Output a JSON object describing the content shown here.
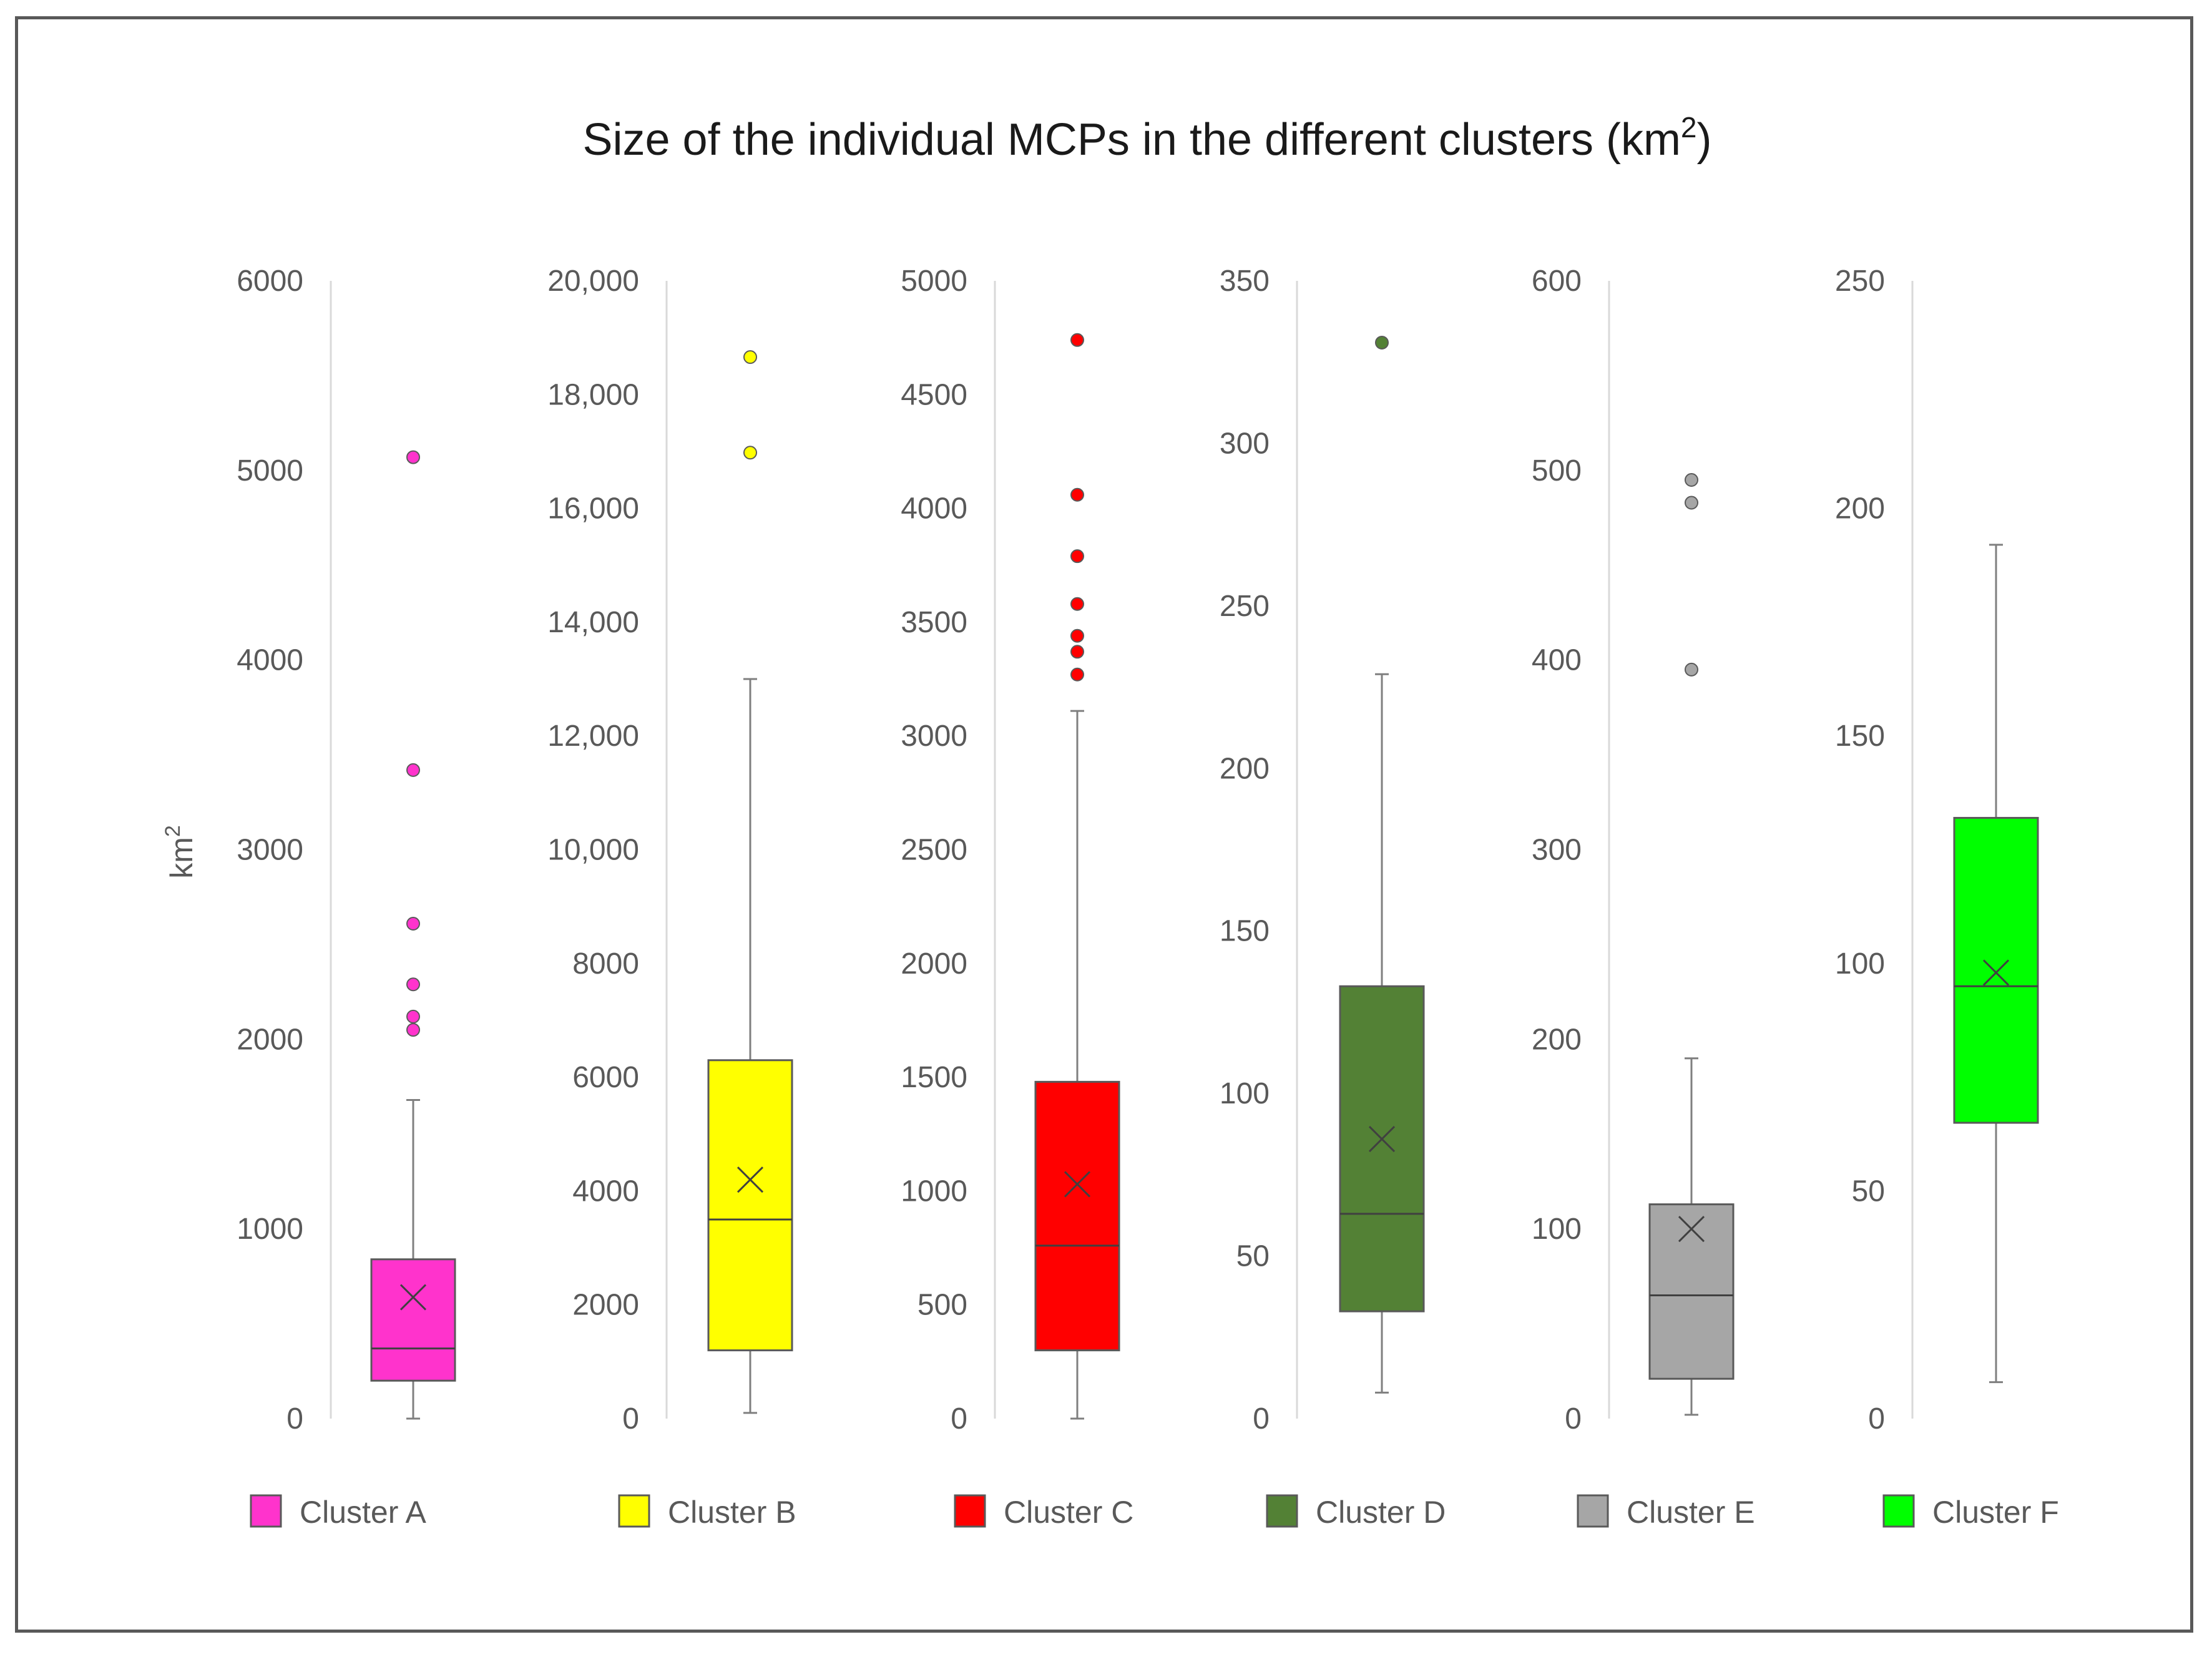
{
  "chart_data": {
    "type": "boxplot",
    "title": "Size of the individual MCPs in the different clusters (km",
    "title_sup": "2",
    "title_end": ")",
    "ylabel": "km",
    "ylabel_sup": "2",
    "panels": [
      {
        "name": "Cluster A",
        "color": "#ff33cc",
        "ylim": [
          0,
          6000
        ],
        "ticks": [
          0,
          1000,
          2000,
          3000,
          4000,
          5000,
          6000
        ],
        "tick_labels": [
          "0",
          "1000",
          "2000",
          "3000",
          "4000",
          "5000",
          "6000"
        ],
        "whisker_low": 0,
        "q1": 200,
        "median": 370,
        "q3": 840,
        "whisker_high": 1680,
        "mean": 640,
        "outliers": [
          2050,
          2120,
          2290,
          2610,
          3420,
          5070
        ]
      },
      {
        "name": "Cluster B",
        "color": "#ffff00",
        "ylim": [
          0,
          20000
        ],
        "ticks": [
          0,
          2000,
          4000,
          6000,
          8000,
          10000,
          12000,
          14000,
          16000,
          18000,
          20000
        ],
        "tick_labels": [
          "0",
          "2000",
          "4000",
          "6000",
          "8000",
          "10,000",
          "12,000",
          "14,000",
          "16,000",
          "18,000",
          "20,000"
        ],
        "whisker_low": 100,
        "q1": 1200,
        "median": 3500,
        "q3": 6300,
        "whisker_high": 13000,
        "mean": 4200,
        "outliers": [
          16980,
          18660
        ]
      },
      {
        "name": "Cluster C",
        "color": "#ff0000",
        "ylim": [
          0,
          5000
        ],
        "ticks": [
          0,
          500,
          1000,
          1500,
          2000,
          2500,
          3000,
          3500,
          4000,
          4500,
          5000
        ],
        "tick_labels": [
          "0",
          "500",
          "1000",
          "1500",
          "2000",
          "2500",
          "3000",
          "3500",
          "4000",
          "4500",
          "5000"
        ],
        "whisker_low": 0,
        "q1": 300,
        "median": 760,
        "q3": 1480,
        "whisker_high": 3110,
        "mean": 1030,
        "outliers": [
          3270,
          3370,
          3440,
          3580,
          3790,
          4060,
          4740
        ]
      },
      {
        "name": "Cluster D",
        "color": "#538135",
        "ylim": [
          0,
          350
        ],
        "ticks": [
          0,
          50,
          100,
          150,
          200,
          250,
          300,
          350
        ],
        "tick_labels": [
          "0",
          "50",
          "100",
          "150",
          "200",
          "250",
          "300",
          "350"
        ],
        "whisker_low": 8,
        "q1": 33,
        "median": 63,
        "q3": 133,
        "whisker_high": 229,
        "mean": 86,
        "outliers": [
          331
        ]
      },
      {
        "name": "Cluster E",
        "color": "#a6a6a6",
        "ylim": [
          0,
          600
        ],
        "ticks": [
          0,
          100,
          200,
          300,
          400,
          500,
          600
        ],
        "tick_labels": [
          "0",
          "100",
          "200",
          "300",
          "400",
          "500",
          "600"
        ],
        "whisker_low": 2,
        "q1": 21,
        "median": 65,
        "q3": 113,
        "whisker_high": 190,
        "mean": 100,
        "outliers": [
          395,
          483,
          495
        ]
      },
      {
        "name": "Cluster F",
        "color": "#00ff00",
        "ylim": [
          0,
          250
        ],
        "ticks": [
          0,
          50,
          100,
          150,
          200,
          250
        ],
        "tick_labels": [
          "0",
          "50",
          "100",
          "150",
          "200",
          "250"
        ],
        "whisker_low": 8,
        "q1": 65,
        "median": 95,
        "q3": 132,
        "whisker_high": 192,
        "mean": 98,
        "outliers": []
      }
    ]
  }
}
